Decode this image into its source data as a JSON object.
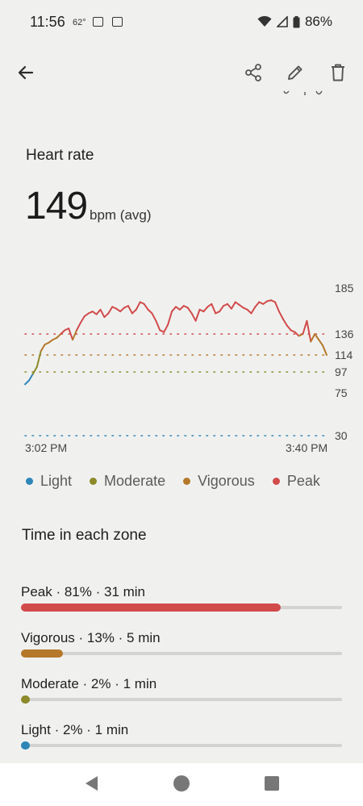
{
  "status": {
    "time": "11:56",
    "temp": "62°",
    "battery": "86%"
  },
  "icons": {
    "back": "arrow-back-icon",
    "share": "share-icon",
    "edit": "pencil-icon",
    "delete": "trash-icon"
  },
  "heart_rate": {
    "title": "Heart rate",
    "avg_value": "149",
    "avg_unit": "bpm (avg)"
  },
  "chart_data": {
    "type": "line",
    "x_start_label": "3:02 PM",
    "x_end_label": "3:40 PM",
    "y_ticks": [
      "185",
      "136",
      "114",
      "97",
      "75",
      "30"
    ],
    "y_tick_values": [
      185,
      136,
      114,
      97,
      75,
      30
    ],
    "zone_thresholds": [
      {
        "zone": "Peak",
        "value": 136,
        "color": "#d14b4b"
      },
      {
        "zone": "Vigorous",
        "value": 114,
        "color": "#b5782b"
      },
      {
        "zone": "Moderate",
        "value": 97,
        "color": "#8c8a2a"
      },
      {
        "zone": "Light",
        "value": 30,
        "color": "#2e86b8"
      }
    ],
    "x_minutes": [
      0,
      0.5,
      1,
      1.5,
      2,
      2.5,
      3,
      3.5,
      4,
      4.5,
      5,
      5.5,
      6,
      6.5,
      7,
      7.5,
      8,
      8.5,
      9,
      9.5,
      10,
      10.5,
      11,
      11.5,
      12,
      12.5,
      13,
      13.5,
      14,
      14.5,
      15,
      15.5,
      16,
      16.5,
      17,
      17.5,
      18,
      18.5,
      19,
      19.5,
      20,
      20.5,
      21,
      21.5,
      22,
      22.5,
      23,
      23.5,
      24,
      24.5,
      25,
      25.5,
      26,
      26.5,
      27,
      27.5,
      28,
      28.5,
      29,
      29.5,
      30,
      30.5,
      31,
      31.5,
      32,
      32.5,
      33,
      33.5,
      34,
      34.5,
      35,
      35.5,
      36,
      36.5,
      37,
      37.5,
      38
    ],
    "bpm": [
      84,
      88,
      95,
      102,
      118,
      125,
      127,
      130,
      132,
      136,
      140,
      142,
      130,
      140,
      148,
      155,
      158,
      160,
      157,
      162,
      154,
      158,
      165,
      163,
      160,
      164,
      166,
      158,
      162,
      170,
      168,
      162,
      158,
      150,
      140,
      138,
      146,
      160,
      165,
      162,
      166,
      164,
      158,
      150,
      162,
      160,
      165,
      168,
      158,
      160,
      166,
      168,
      163,
      170,
      167,
      164,
      162,
      158,
      165,
      170,
      168,
      171,
      172,
      170,
      160,
      152,
      145,
      140,
      138,
      134,
      136,
      150,
      128,
      136,
      130,
      124,
      114
    ]
  },
  "legend": [
    {
      "label": "Light",
      "color": "#2e86b8"
    },
    {
      "label": "Moderate",
      "color": "#8c8a2a"
    },
    {
      "label": "Vigorous",
      "color": "#b5782b"
    },
    {
      "label": "Peak",
      "color": "#d14b4b"
    }
  ],
  "zones": {
    "title": "Time in each zone",
    "items": [
      {
        "label": "Peak · 81% · 31 min",
        "fraction": 0.81,
        "color": "#d14b4b"
      },
      {
        "label": "Vigorous · 13% · 5 min",
        "fraction": 0.13,
        "color": "#b5782b"
      },
      {
        "label": "Moderate · 2% · 1 min",
        "fraction": 0.02,
        "color": "#8c8a2a"
      },
      {
        "label": "Light · 2% · 1 min",
        "fraction": 0.02,
        "color": "#2e86b8"
      }
    ]
  },
  "nav": {
    "back": "nav-back-icon",
    "home": "nav-home-icon",
    "recents": "nav-recents-icon"
  }
}
